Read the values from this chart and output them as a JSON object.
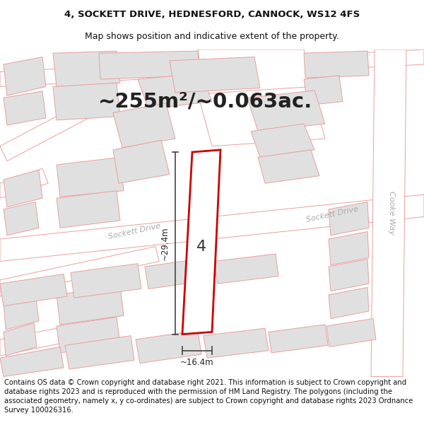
{
  "title_line1": "4, SOCKETT DRIVE, HEDNESFORD, CANNOCK, WS12 4FS",
  "title_line2": "Map shows position and indicative extent of the property.",
  "area_text": "~255m²/~0.063ac.",
  "number_label": "4",
  "dim_vertical": "~29.4m",
  "dim_horizontal": "~16.4m",
  "road_label_sockett_on": "Sockett Drive",
  "road_label_sockett_right": "Sockett Drive",
  "road_label_cooke": "Cooke Way",
  "footer": "Contains OS data © Crown copyright and database right 2021. This information is subject to Crown copyright and database rights 2023 and is reproduced with the permission of HM Land Registry. The polygons (including the associated geometry, namely x, y co-ordinates) are subject to Crown copyright and database rights 2023 Ordnance Survey 100026316.",
  "bg_color": "#ffffff",
  "map_bg": "#f7f7f7",
  "building_fill": "#e0e0e0",
  "building_edge": "#e8a0a0",
  "highlight_fill": "#ffffff",
  "highlight_edge": "#cc0000",
  "road_fill": "#ffffff",
  "road_edge": "#e8a0a0",
  "title_fontsize": 9.5,
  "area_fontsize": 21,
  "number_fontsize": 16,
  "dim_fontsize": 8.5,
  "road_fontsize": 8,
  "footer_fontsize": 7.2
}
